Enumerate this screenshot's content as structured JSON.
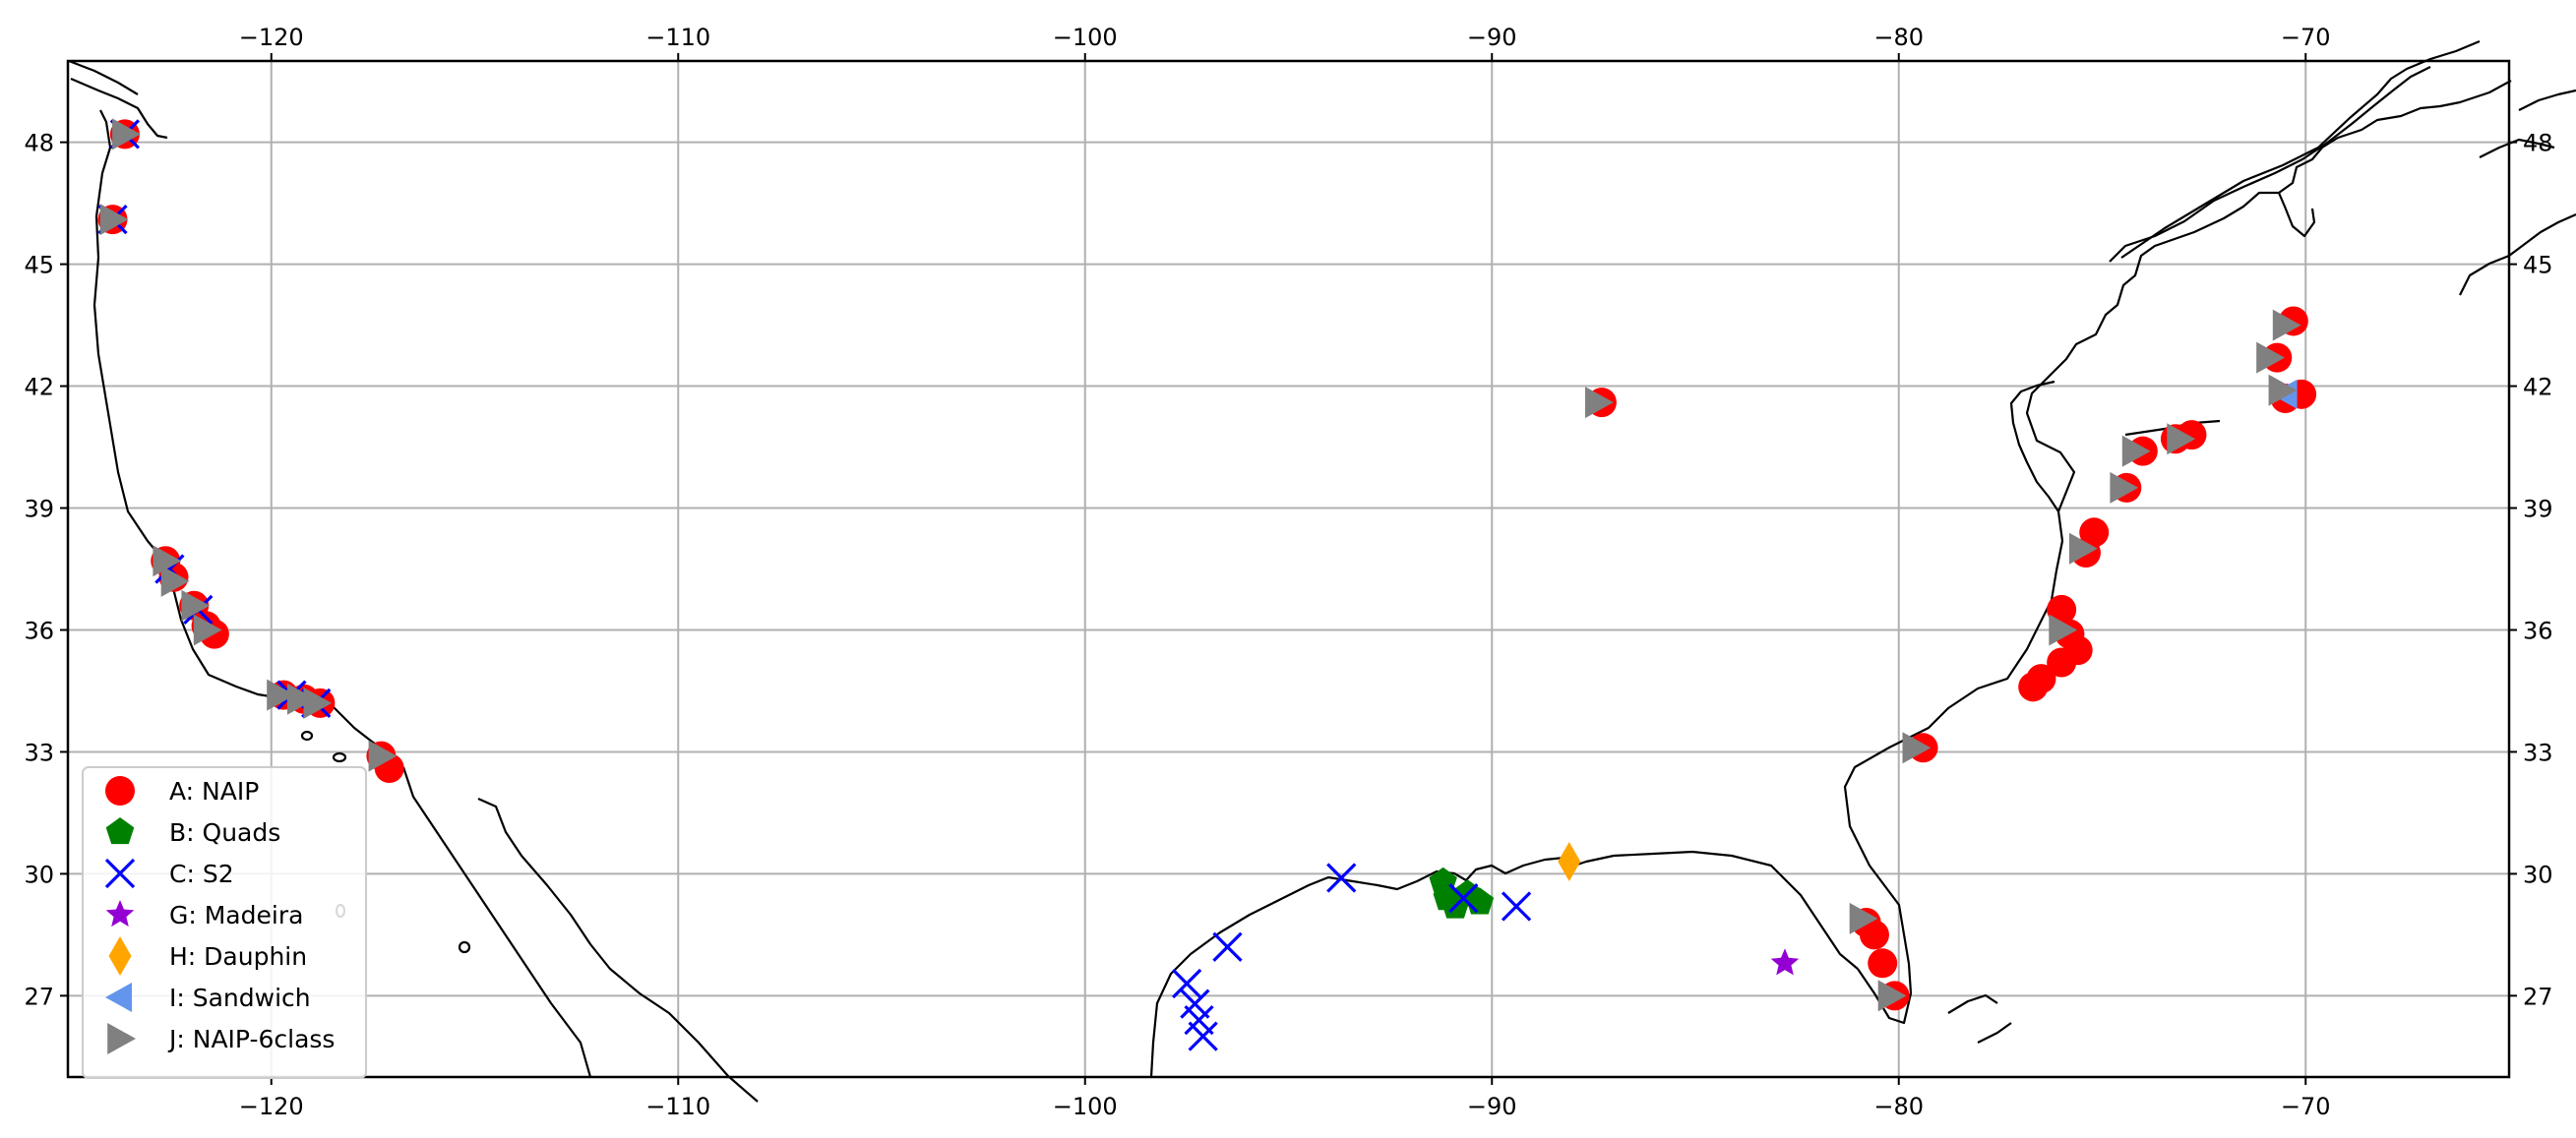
{
  "chart_data": {
    "type": "scatter",
    "title": "",
    "xlabel": "",
    "ylabel": "",
    "xlim": [
      -125,
      -65
    ],
    "ylim": [
      25,
      50
    ],
    "grid": true,
    "x_ticks": [
      -120,
      -110,
      -100,
      -90,
      -80,
      -70
    ],
    "x_tick_labels": [
      "−120",
      "−110",
      "−100",
      "−90",
      "−80",
      "−70"
    ],
    "y_ticks": [
      27,
      30,
      33,
      36,
      39,
      42,
      45,
      48
    ],
    "y_tick_labels": [
      "27",
      "30",
      "33",
      "36",
      "39",
      "42",
      "45",
      "48"
    ],
    "legend_position": "lower-left",
    "series": [
      {
        "name": "A: NAIP",
        "marker": "circle",
        "color": "#ff0000",
        "points": [
          [
            -123.6,
            48.2
          ],
          [
            -123.9,
            46.1
          ],
          [
            -122.6,
            37.7
          ],
          [
            -122.4,
            37.3
          ],
          [
            -121.9,
            36.6
          ],
          [
            -121.6,
            36.1
          ],
          [
            -121.4,
            35.9
          ],
          [
            -119.7,
            34.4
          ],
          [
            -119.2,
            34.3
          ],
          [
            -118.8,
            34.2
          ],
          [
            -117.3,
            32.9
          ],
          [
            -117.1,
            32.6
          ],
          [
            -87.3,
            41.6
          ],
          [
            -70.3,
            43.6
          ],
          [
            -70.7,
            42.7
          ],
          [
            -70.1,
            41.8
          ],
          [
            -70.5,
            41.7
          ],
          [
            -72.8,
            40.8
          ],
          [
            -73.2,
            40.7
          ],
          [
            -74.0,
            40.4
          ],
          [
            -74.4,
            39.5
          ],
          [
            -75.2,
            38.4
          ],
          [
            -75.4,
            37.9
          ],
          [
            -76.0,
            36.5
          ],
          [
            -75.8,
            35.9
          ],
          [
            -75.6,
            35.5
          ],
          [
            -76.0,
            35.2
          ],
          [
            -76.5,
            34.8
          ],
          [
            -76.7,
            34.6
          ],
          [
            -79.4,
            33.1
          ],
          [
            -80.8,
            28.8
          ],
          [
            -80.6,
            28.5
          ],
          [
            -80.4,
            27.8
          ],
          [
            -80.1,
            27.0
          ]
        ]
      },
      {
        "name": "B: Quads",
        "marker": "pentagon",
        "color": "#008000",
        "points": [
          [
            -91.2,
            29.8
          ],
          [
            -91.1,
            29.4
          ],
          [
            -90.9,
            29.2
          ],
          [
            -90.6,
            29.5
          ],
          [
            -90.3,
            29.3
          ]
        ]
      },
      {
        "name": "C: S2",
        "marker": "x",
        "color": "#0000ff",
        "points": [
          [
            -123.6,
            48.2
          ],
          [
            -123.9,
            46.1
          ],
          [
            -122.5,
            37.5
          ],
          [
            -121.8,
            36.5
          ],
          [
            -119.5,
            34.4
          ],
          [
            -118.9,
            34.2
          ],
          [
            -93.7,
            29.9
          ],
          [
            -90.7,
            29.4
          ],
          [
            -89.4,
            29.2
          ],
          [
            -96.5,
            28.2
          ],
          [
            -97.5,
            27.3
          ],
          [
            -97.3,
            26.8
          ],
          [
            -97.2,
            26.4
          ],
          [
            -97.1,
            26.0
          ]
        ]
      },
      {
        "name": "G: Madeira",
        "marker": "star",
        "color": "#9400d3",
        "points": [
          [
            -82.8,
            27.8
          ]
        ]
      },
      {
        "name": "H: Dauphin",
        "marker": "diamond",
        "color": "#ffa500",
        "points": [
          [
            -88.1,
            30.3
          ]
        ]
      },
      {
        "name": "I: Sandwich",
        "marker": "triangle-left",
        "color": "#6495ed",
        "points": [
          [
            -70.5,
            41.8
          ]
        ]
      },
      {
        "name": "J: NAIP-6class",
        "marker": "triangle-right",
        "color": "#808080",
        "points": [
          [
            -123.6,
            48.2
          ],
          [
            -123.9,
            46.1
          ],
          [
            -122.6,
            37.7
          ],
          [
            -122.4,
            37.2
          ],
          [
            -121.9,
            36.6
          ],
          [
            -121.6,
            36.0
          ],
          [
            -119.8,
            34.4
          ],
          [
            -119.3,
            34.3
          ],
          [
            -118.9,
            34.2
          ],
          [
            -117.3,
            32.9
          ],
          [
            -87.4,
            41.6
          ],
          [
            -70.5,
            43.5
          ],
          [
            -70.9,
            42.7
          ],
          [
            -70.6,
            41.9
          ],
          [
            -73.1,
            40.7
          ],
          [
            -74.2,
            40.4
          ],
          [
            -74.5,
            39.5
          ],
          [
            -75.5,
            38.0
          ],
          [
            -76.0,
            36.0
          ],
          [
            -79.6,
            33.1
          ],
          [
            -80.9,
            28.9
          ],
          [
            -80.2,
            27.0
          ]
        ]
      }
    ]
  }
}
